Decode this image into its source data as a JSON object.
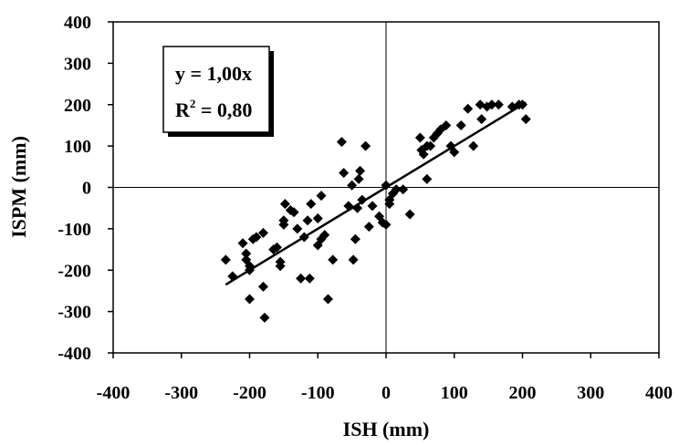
{
  "chart_data": {
    "type": "scatter",
    "title": "",
    "xlabel": "ISH (mm)",
    "ylabel": "ISPM (mm)",
    "xlim": [
      -400,
      400
    ],
    "ylim": [
      -400,
      400
    ],
    "xticks": [
      -400,
      -300,
      -200,
      -100,
      0,
      100,
      200,
      300,
      400
    ],
    "yticks": [
      -400,
      -300,
      -200,
      -100,
      0,
      100,
      200,
      300,
      400
    ],
    "grid": false,
    "annotation": {
      "line1": "y = 1,00x",
      "r2_prefix": "R",
      "r2_exp": "2",
      "r2_suffix": " = 0,80"
    },
    "trendline": {
      "slope": 1.0,
      "x_range": [
        -235,
        205
      ]
    },
    "marker_color": "#000000",
    "points": [
      [
        -235,
        -175
      ],
      [
        -225,
        -215
      ],
      [
        -210,
        -135
      ],
      [
        -205,
        -160
      ],
      [
        -205,
        -175
      ],
      [
        -200,
        -190
      ],
      [
        -200,
        -200
      ],
      [
        -200,
        -270
      ],
      [
        -195,
        -125
      ],
      [
        -190,
        -120
      ],
      [
        -180,
        -110
      ],
      [
        -180,
        -240
      ],
      [
        -178,
        -315
      ],
      [
        -165,
        -150
      ],
      [
        -160,
        -145
      ],
      [
        -155,
        -180
      ],
      [
        -155,
        -190
      ],
      [
        -150,
        -80
      ],
      [
        -150,
        -90
      ],
      [
        -148,
        -40
      ],
      [
        -140,
        -55
      ],
      [
        -135,
        -60
      ],
      [
        -130,
        -100
      ],
      [
        -125,
        -220
      ],
      [
        -120,
        -120
      ],
      [
        -115,
        -80
      ],
      [
        -112,
        -220
      ],
      [
        -110,
        -40
      ],
      [
        -100,
        -75
      ],
      [
        -100,
        -140
      ],
      [
        -95,
        -125
      ],
      [
        -95,
        -20
      ],
      [
        -90,
        -115
      ],
      [
        -85,
        -270
      ],
      [
        -78,
        -175
      ],
      [
        -65,
        110
      ],
      [
        -62,
        35
      ],
      [
        -55,
        -45
      ],
      [
        -50,
        5
      ],
      [
        -48,
        -175
      ],
      [
        -45,
        -125
      ],
      [
        -42,
        -50
      ],
      [
        -40,
        20
      ],
      [
        -38,
        40
      ],
      [
        -35,
        -30
      ],
      [
        -30,
        100
      ],
      [
        -25,
        -95
      ],
      [
        -20,
        -45
      ],
      [
        -10,
        -70
      ],
      [
        -5,
        -85
      ],
      [
        0,
        -90
      ],
      [
        0,
        5
      ],
      [
        5,
        -40
      ],
      [
        5,
        -30
      ],
      [
        10,
        -15
      ],
      [
        15,
        -5
      ],
      [
        25,
        -5
      ],
      [
        35,
        -65
      ],
      [
        50,
        120
      ],
      [
        52,
        90
      ],
      [
        55,
        80
      ],
      [
        60,
        100
      ],
      [
        60,
        20
      ],
      [
        65,
        100
      ],
      [
        70,
        120
      ],
      [
        75,
        130
      ],
      [
        80,
        140
      ],
      [
        88,
        150
      ],
      [
        95,
        100
      ],
      [
        100,
        85
      ],
      [
        110,
        150
      ],
      [
        120,
        190
      ],
      [
        128,
        100
      ],
      [
        138,
        200
      ],
      [
        140,
        165
      ],
      [
        148,
        195
      ],
      [
        155,
        200
      ],
      [
        165,
        200
      ],
      [
        185,
        195
      ],
      [
        195,
        200
      ],
      [
        200,
        200
      ],
      [
        205,
        165
      ]
    ]
  }
}
